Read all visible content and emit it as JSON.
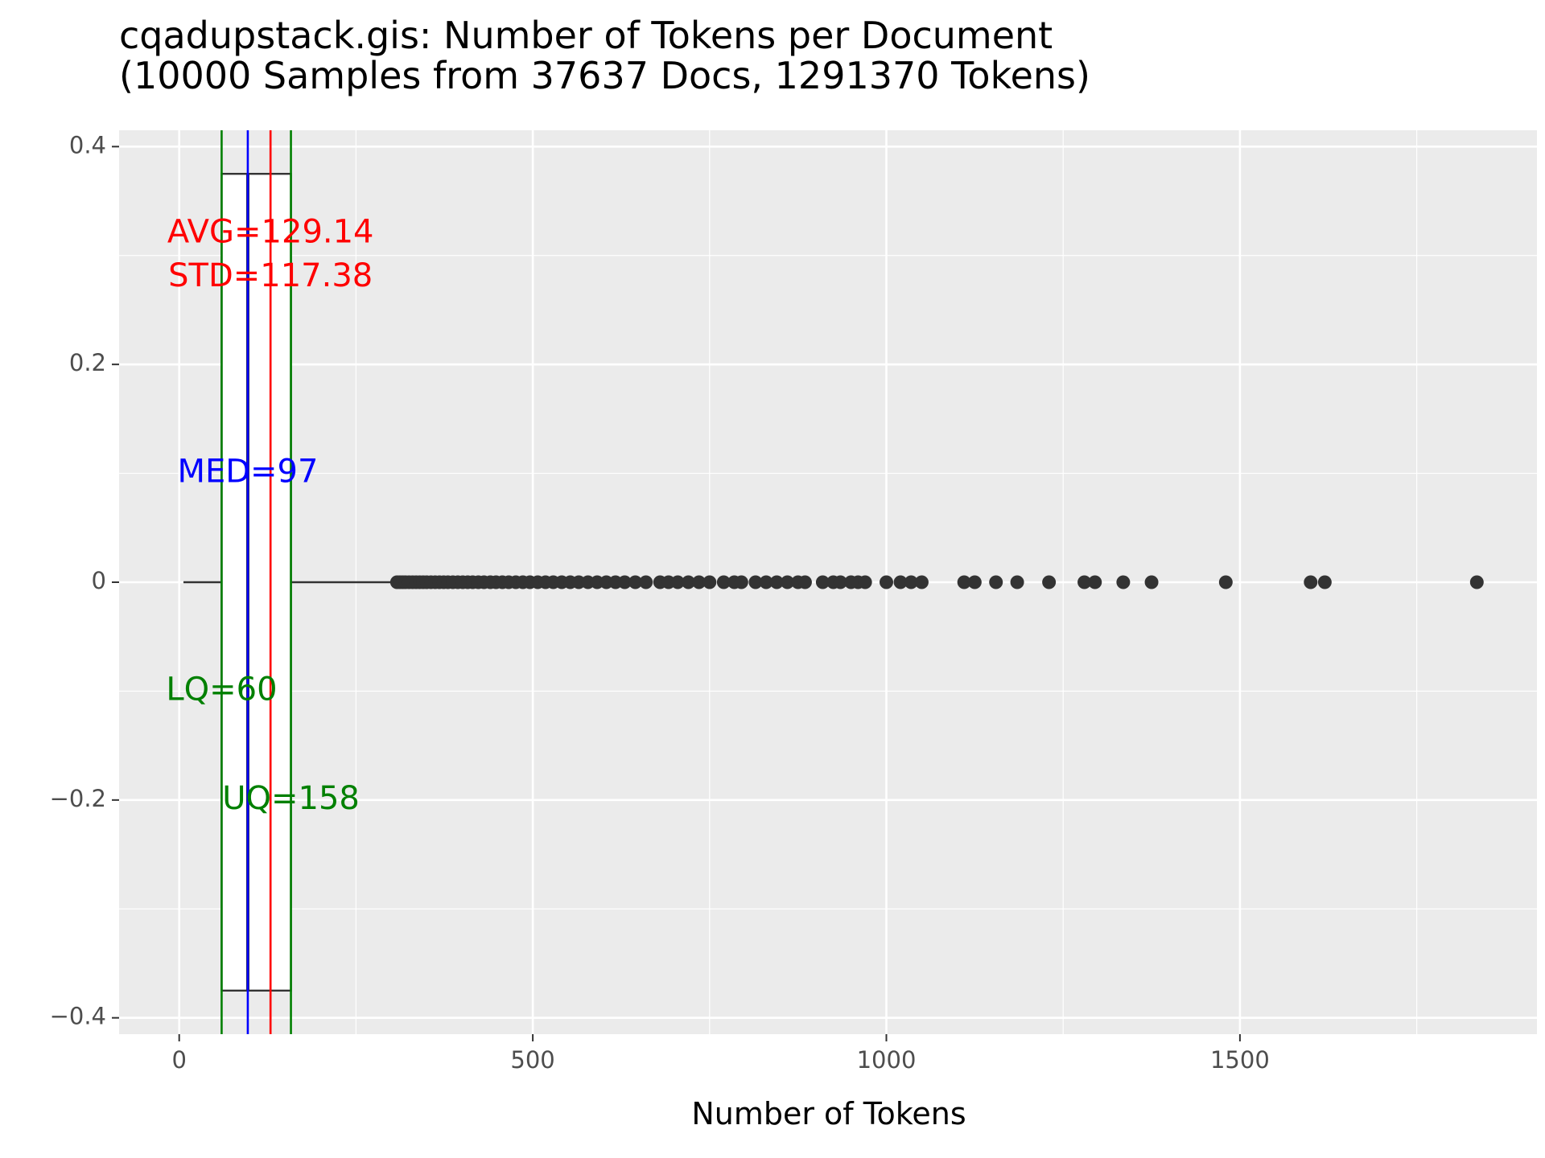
{
  "chart_data": {
    "type": "boxplot",
    "title_line1": "cqadupstack.gis: Number of Tokens per Document",
    "title_line2": "(10000 Samples from 37637 Docs, 1291370 Tokens)",
    "xlabel": "Number of Tokens",
    "ylabel": "",
    "xlim": [
      -85,
      1920
    ],
    "ylim": [
      -0.415,
      0.415
    ],
    "x_ticks": [
      0,
      500,
      1000,
      1500
    ],
    "x_tick_labels": [
      "0",
      "500",
      "1000",
      "1500"
    ],
    "x_minor_ticks": [
      250,
      750,
      1250,
      1750
    ],
    "y_ticks": [
      0.4,
      0.2,
      0,
      -0.2,
      -0.4
    ],
    "y_tick_labels": [
      "0.4",
      "0.2",
      "0",
      "−0.2",
      "−0.4"
    ],
    "y_minor_ticks": [
      0.3,
      0.1,
      -0.1,
      -0.3
    ],
    "grid": true,
    "box": {
      "whisker_low": 6,
      "q1": 60,
      "median": 97,
      "q3": 158,
      "whisker_high": 305,
      "y_center": 0,
      "half_width": 0.375
    },
    "outliers": [
      308,
      312,
      316,
      320,
      325,
      330,
      335,
      340,
      345,
      350,
      356,
      362,
      368,
      374,
      380,
      387,
      394,
      401,
      408,
      415,
      423,
      431,
      440,
      448,
      457,
      466,
      476,
      486,
      496,
      507,
      518,
      529,
      541,
      553,
      565,
      578,
      591,
      604,
      617,
      630,
      645,
      660,
      680,
      692,
      705,
      720,
      735,
      750,
      770,
      785,
      795,
      815,
      830,
      845,
      860,
      875,
      885,
      910,
      925,
      935,
      950,
      960,
      970,
      1000,
      1020,
      1035,
      1050,
      1110,
      1125,
      1155,
      1185,
      1230,
      1280,
      1295,
      1335,
      1375,
      1480,
      1600,
      1620,
      1835
    ],
    "annotations": [
      {
        "text": "AVG=129.14",
        "x": 129.14,
        "y": 0.32,
        "color": "#ff0000"
      },
      {
        "text": "STD=117.38",
        "x": 129.14,
        "y": 0.28,
        "color": "#ff0000"
      },
      {
        "text": "MED=97",
        "x": 97,
        "y": 0.1,
        "color": "#0000ff"
      },
      {
        "text": "LQ=60",
        "x": 60,
        "y": -0.1,
        "color": "#008000"
      },
      {
        "text": "UQ=158",
        "x": 158,
        "y": -0.2,
        "color": "#008000"
      }
    ],
    "vlines": [
      {
        "x": 60,
        "color": "#008000"
      },
      {
        "x": 158,
        "color": "#008000"
      },
      {
        "x": 97,
        "color": "#0000ff"
      },
      {
        "x": 129.14,
        "color": "#ff0000"
      }
    ],
    "colors": {
      "panel_bg": "#ebebeb",
      "grid": "#ffffff",
      "box_line": "#333333",
      "point": "#333333"
    }
  }
}
